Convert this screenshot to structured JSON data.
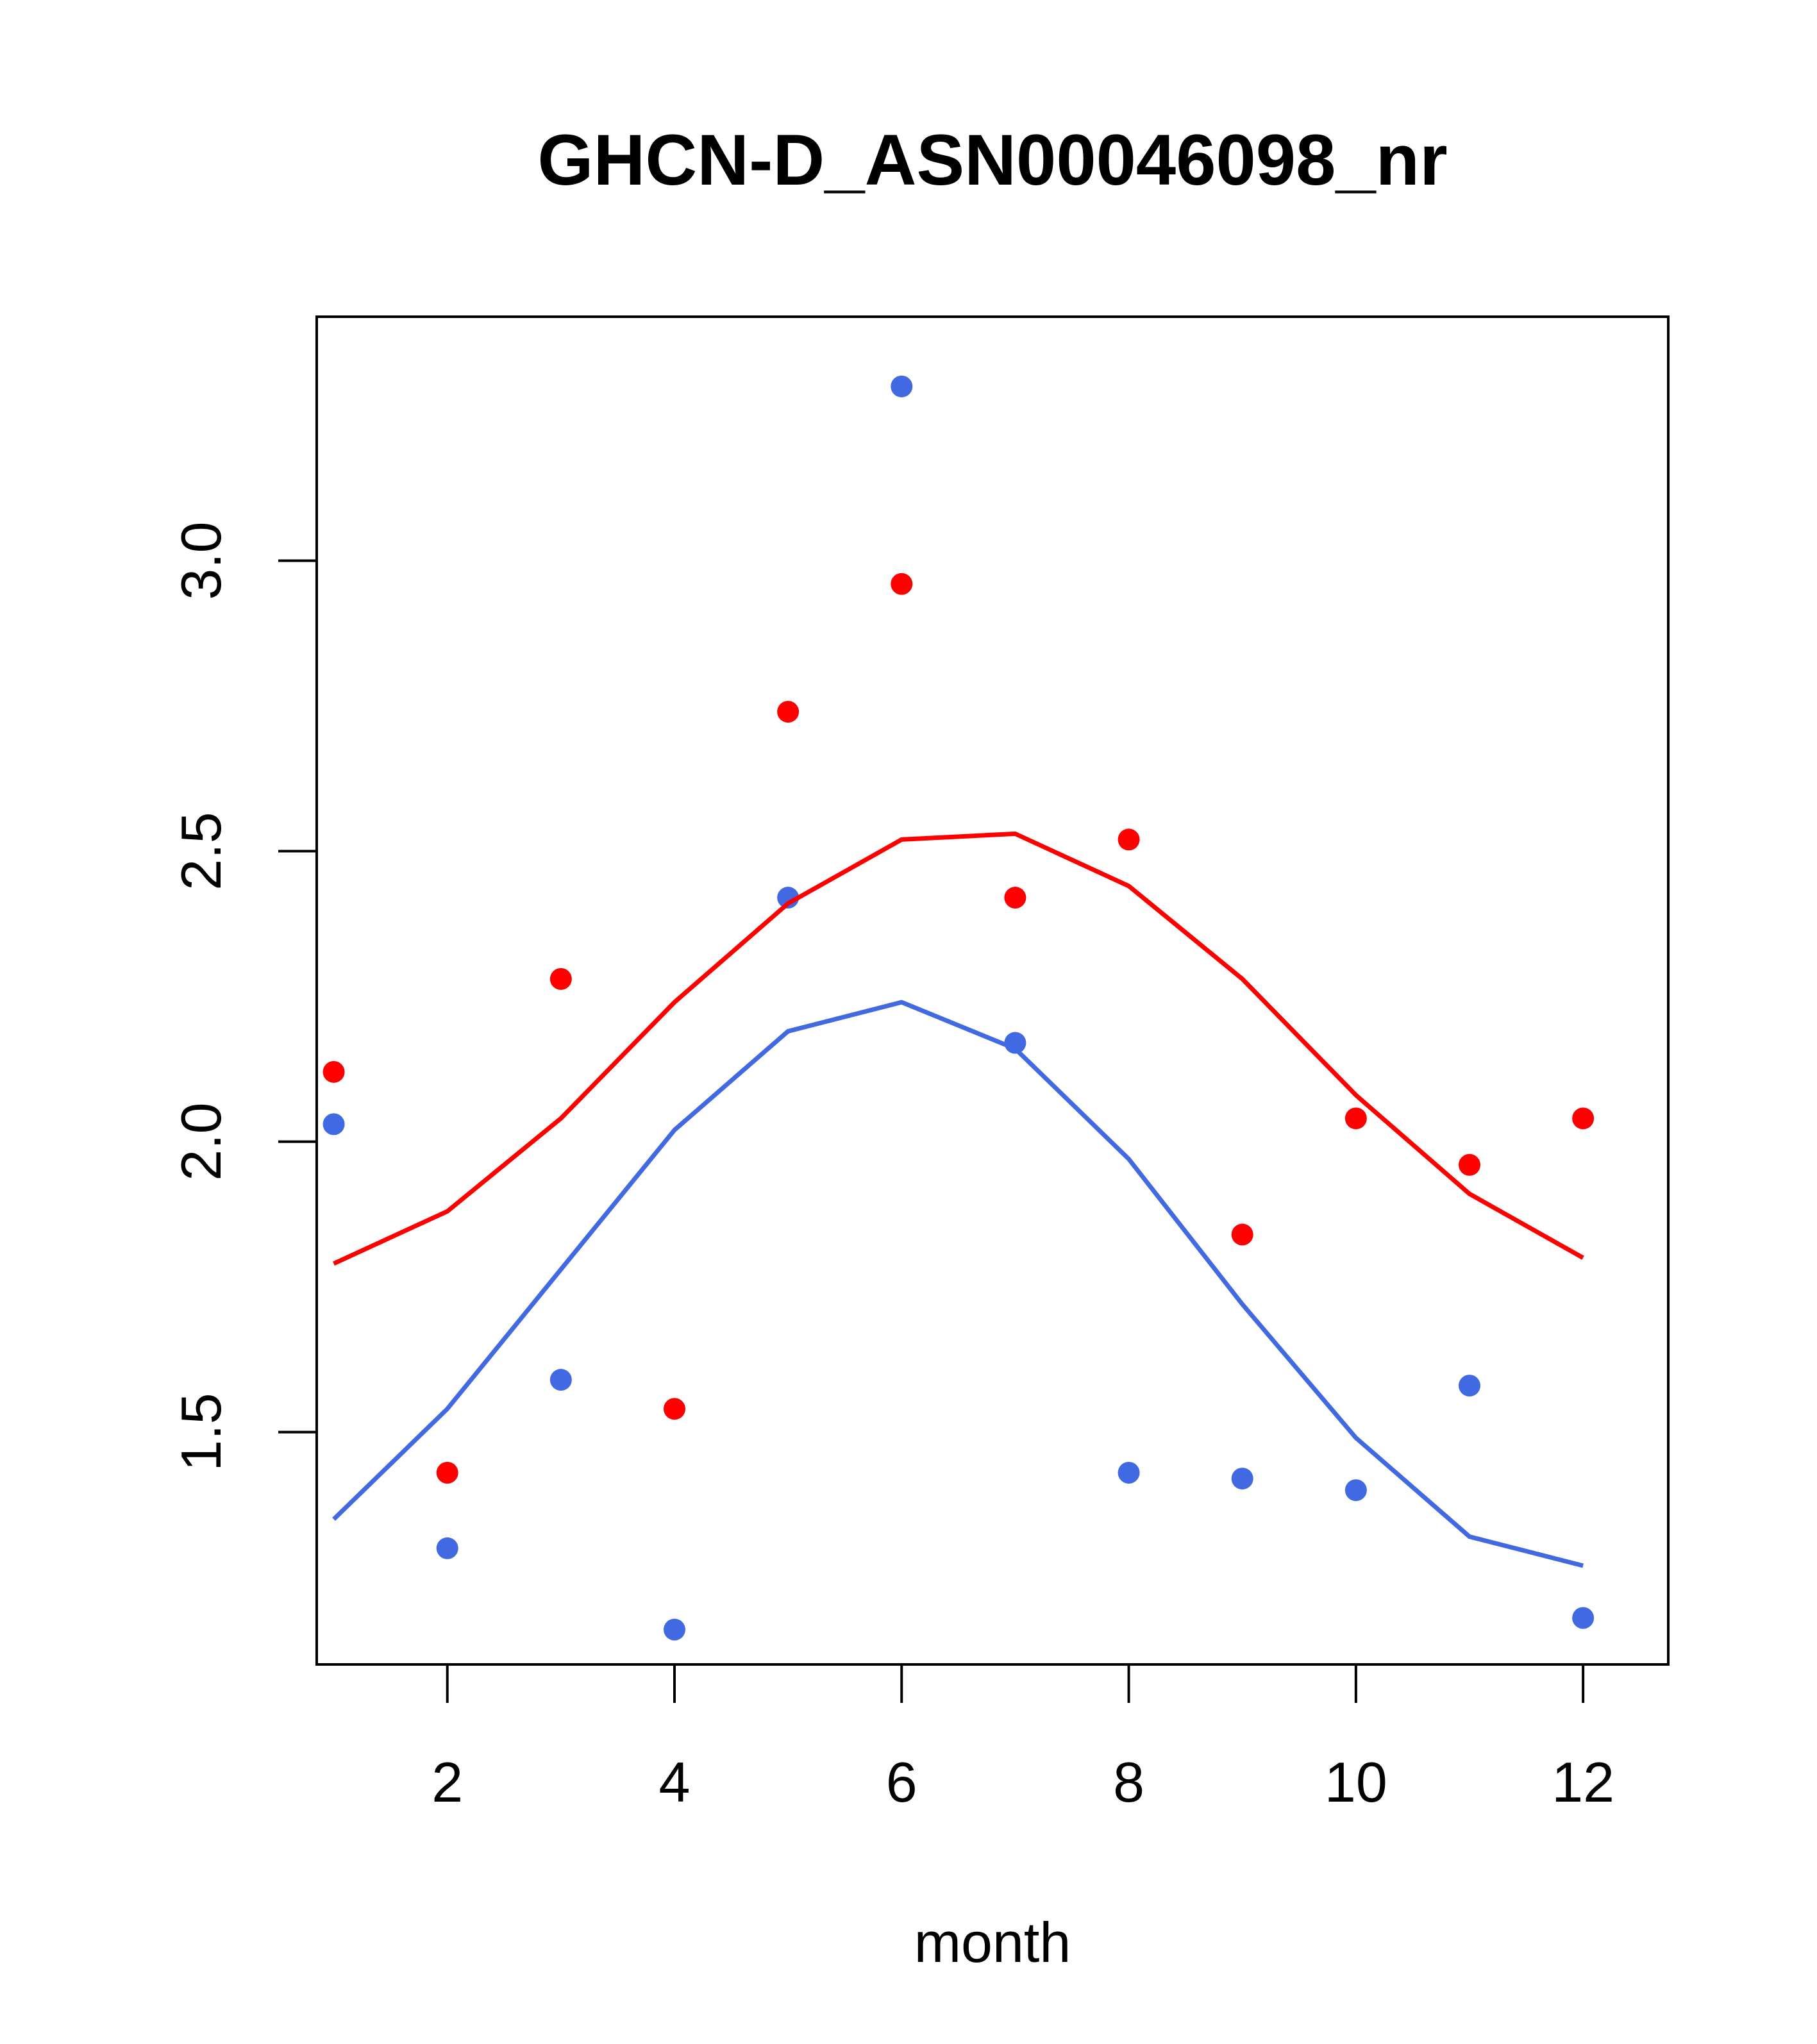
{
  "chart_data": {
    "type": "scatter",
    "title": "GHCN-D_ASN00046098_nr",
    "xlabel": "month",
    "ylabel": "",
    "xlim": [
      0.85,
      12.75
    ],
    "ylim": [
      1.1,
      3.42
    ],
    "x_ticks": [
      2,
      4,
      6,
      8,
      10,
      12
    ],
    "x_tick_labels": [
      "2",
      "4",
      "6",
      "8",
      "10",
      "12"
    ],
    "y_ticks": [
      1.5,
      2.0,
      2.5,
      3.0
    ],
    "y_tick_labels": [
      "1.5",
      "2.0",
      "2.5",
      "3.0"
    ],
    "grid": false,
    "series": [
      {
        "kind": "points",
        "color": "#ff0000",
        "x": [
          1,
          2,
          3,
          4,
          5,
          6,
          7,
          8,
          9,
          10,
          11,
          12
        ],
        "values": [
          2.12,
          1.43,
          2.28,
          1.54,
          2.74,
          2.96,
          2.42,
          2.52,
          1.84,
          2.04,
          1.96,
          2.04
        ]
      },
      {
        "kind": "points",
        "color": "#4169e1",
        "x": [
          1,
          2,
          3,
          4,
          5,
          6,
          7,
          8,
          9,
          10,
          11,
          12
        ],
        "values": [
          2.03,
          1.3,
          1.59,
          1.16,
          2.42,
          3.3,
          2.17,
          1.43,
          1.42,
          1.4,
          1.58,
          1.18
        ]
      },
      {
        "kind": "line",
        "color": "#ff0000",
        "x": [
          1,
          2,
          3,
          4,
          5,
          6,
          7,
          8,
          9,
          10,
          11,
          12
        ],
        "values": [
          1.79,
          1.88,
          2.04,
          2.24,
          2.41,
          2.52,
          2.53,
          2.44,
          2.28,
          2.08,
          1.91,
          1.8
        ]
      },
      {
        "kind": "line",
        "color": "#4169e1",
        "x": [
          1,
          2,
          3,
          4,
          5,
          6,
          7,
          8,
          9,
          10,
          11,
          12
        ],
        "values": [
          1.35,
          1.54,
          1.78,
          2.02,
          2.19,
          2.24,
          2.16,
          1.97,
          1.72,
          1.49,
          1.32,
          1.27
        ]
      }
    ]
  }
}
